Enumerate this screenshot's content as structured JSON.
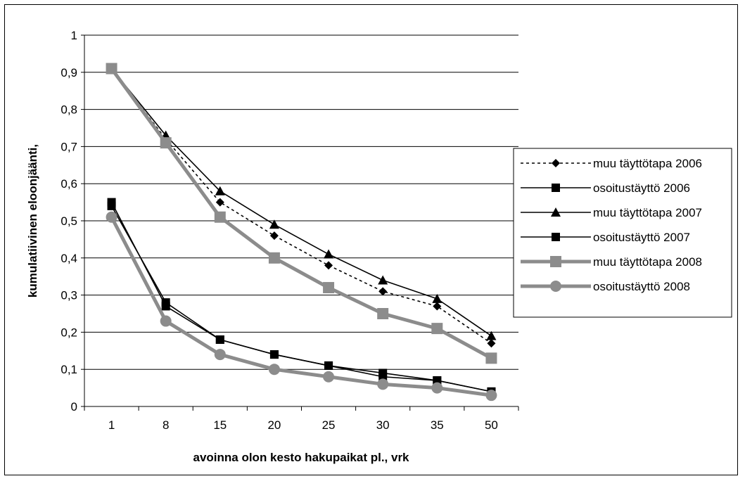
{
  "chart_data": {
    "type": "line",
    "title": "",
    "xlabel": "avoinna olon kesto hakupaikat pl., vrk",
    "ylabel": "kumulatiivinen eloonjäänti,",
    "categories": [
      "1",
      "8",
      "15",
      "20",
      "25",
      "30",
      "35",
      "50"
    ],
    "ylim": [
      0,
      1
    ],
    "ytick_step": 0.1,
    "ytick_labels": [
      "0",
      "0,1",
      "0,2",
      "0,3",
      "0,4",
      "0,5",
      "0,6",
      "0,7",
      "0,8",
      "0,9",
      "1"
    ],
    "grid": "horizontal",
    "legend_position": "right",
    "series": [
      {
        "name": "muu täyttötapa 2006",
        "values": [
          0.91,
          0.72,
          0.55,
          0.46,
          0.38,
          0.31,
          0.27,
          0.17
        ],
        "color": "#000000",
        "dash": "dotted",
        "marker": "diamond",
        "thick": false
      },
      {
        "name": "osoitustäyttö 2006",
        "values": [
          0.55,
          0.27,
          0.18,
          0.14,
          0.11,
          0.08,
          0.07,
          0.04
        ],
        "color": "#000000",
        "dash": "solid",
        "marker": "square",
        "thick": false
      },
      {
        "name": "muu täyttötapa 2007",
        "values": [
          0.91,
          0.73,
          0.58,
          0.49,
          0.41,
          0.34,
          0.29,
          0.19
        ],
        "color": "#000000",
        "dash": "solid",
        "marker": "triangle",
        "thick": false
      },
      {
        "name": "osoitustäyttö 2007",
        "values": [
          0.54,
          0.28,
          0.18,
          0.14,
          0.11,
          0.09,
          0.07,
          0.04
        ],
        "color": "#000000",
        "dash": "solid",
        "marker": "square",
        "thick": false
      },
      {
        "name": "muu täyttötapa 2008",
        "values": [
          0.91,
          0.71,
          0.51,
          0.4,
          0.32,
          0.25,
          0.21,
          0.13
        ],
        "color": "#8c8c8c",
        "dash": "solid",
        "marker": "square",
        "thick": true
      },
      {
        "name": "osoitustäyttö 2008",
        "values": [
          0.51,
          0.23,
          0.14,
          0.1,
          0.08,
          0.06,
          0.05,
          0.03
        ],
        "color": "#8c8c8c",
        "dash": "solid",
        "marker": "circle",
        "thick": true
      }
    ]
  }
}
